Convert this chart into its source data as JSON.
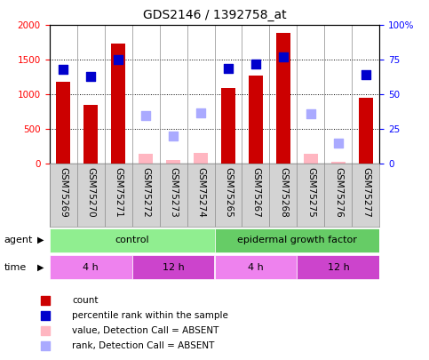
{
  "title": "GDS2146 / 1392758_at",
  "samples": [
    "GSM75269",
    "GSM75270",
    "GSM75271",
    "GSM75272",
    "GSM75273",
    "GSM75274",
    "GSM75265",
    "GSM75267",
    "GSM75268",
    "GSM75275",
    "GSM75276",
    "GSM75277"
  ],
  "count_present": [
    1185,
    850,
    1730,
    null,
    null,
    null,
    1100,
    1275,
    1890,
    null,
    null,
    950
  ],
  "count_absent": [
    null,
    null,
    null,
    145,
    60,
    155,
    null,
    null,
    null,
    140,
    30,
    null
  ],
  "percentile_present": [
    68,
    63,
    75,
    null,
    null,
    null,
    69,
    72,
    77,
    null,
    null,
    64
  ],
  "rank_absent": [
    null,
    null,
    null,
    35,
    20,
    37,
    null,
    null,
    null,
    36,
    15,
    null
  ],
  "ylim_left": [
    0,
    2000
  ],
  "ylim_right": [
    0,
    100
  ],
  "yticks_left": [
    0,
    500,
    1000,
    1500,
    2000
  ],
  "yticks_right": [
    0,
    25,
    50,
    75,
    100
  ],
  "yticklabels_left": [
    "0",
    "500",
    "1000",
    "1500",
    "2000"
  ],
  "yticklabels_right": [
    "0",
    "25",
    "50",
    "75",
    "100%"
  ],
  "bar_color_present": "#CC0000",
  "bar_color_absent": "#FFB6C1",
  "dot_color_present": "#0000CC",
  "dot_color_absent": "#AAAAFF",
  "bar_width": 0.5,
  "dot_size": 55,
  "grid_color": "black",
  "grid_linestyle": ":",
  "plot_bg_color": "#FFFFFF",
  "col_header_bg": "#D3D3D3",
  "agent_control_color": "#90EE90",
  "agent_egf_color": "#66CC66",
  "time_color_4h": "#EE82EE",
  "time_color_12h": "#CC44CC",
  "title_fontsize": 10,
  "tick_fontsize": 7.5,
  "label_fontsize": 8,
  "legend_fontsize": 7.5
}
